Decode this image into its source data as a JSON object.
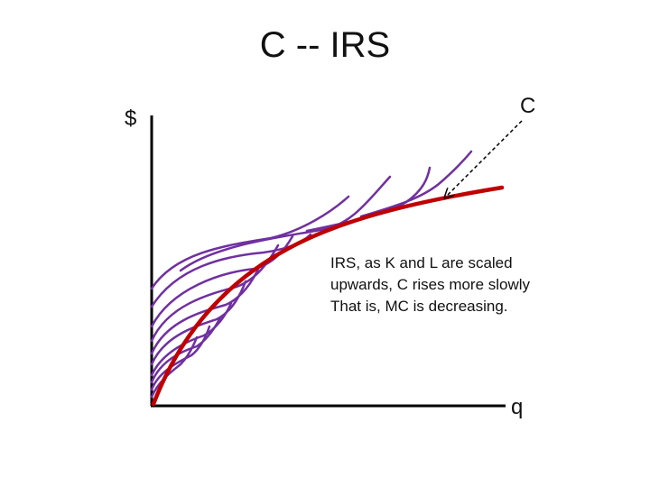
{
  "slide": {
    "title": "C -- IRS",
    "y_axis_label": "$",
    "x_axis_label": "q",
    "curve_label": "C",
    "annotation_lines": [
      "IRS, as K and L are scaled",
      "upwards, C rises more slowly",
      "That is, MC is decreasing."
    ]
  },
  "colors": {
    "short_run_curves": "#7030a0",
    "long_run_curve": "#c00000",
    "axes": "#000000"
  }
}
